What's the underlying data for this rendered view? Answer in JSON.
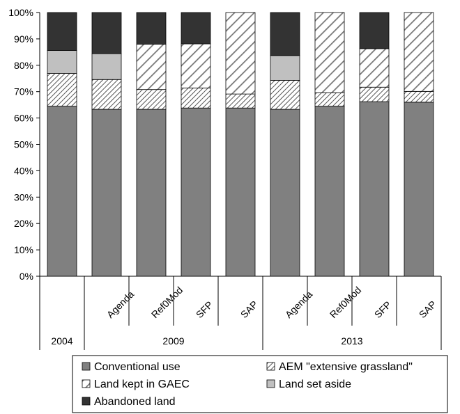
{
  "chart_data": {
    "type": "bar",
    "stacked": true,
    "normalized": true,
    "ylim": [
      0,
      100
    ],
    "yticks": [
      "0%",
      "10%",
      "20%",
      "30%",
      "40%",
      "50%",
      "60%",
      "70%",
      "80%",
      "90%",
      "100%"
    ],
    "categories": [
      "",
      "Agenda",
      "Ref0Mod",
      "SFP",
      "SAP",
      "Agenda",
      "Ref0Mod",
      "SFP",
      "SAP"
    ],
    "groups": [
      {
        "label": "2004",
        "span": 1
      },
      {
        "label": "2009",
        "span": 4
      },
      {
        "label": "2013",
        "span": 4
      }
    ],
    "series": [
      {
        "name": "Conventional use",
        "color": "#808080",
        "pattern": "solid",
        "values": [
          64.5,
          63.3,
          63.3,
          63.8,
          63.8,
          63.3,
          64.5,
          66.2,
          66.0
        ]
      },
      {
        "name": "AEM \"extensive grassland\"",
        "color": "#ffffff",
        "pattern": "diagonal-dense",
        "values": [
          12.4,
          11.3,
          7.5,
          7.6,
          5.3,
          11.0,
          5.1,
          5.5,
          4.1
        ]
      },
      {
        "name": "Land kept in GAEC",
        "color": "#ffffff",
        "pattern": "diagonal-wide",
        "values": [
          0,
          0,
          17.2,
          16.7,
          30.9,
          0,
          30.4,
          14.6,
          29.9
        ]
      },
      {
        "name": "Land set aside",
        "color": "#c0c0c0",
        "pattern": "solid",
        "values": [
          8.7,
          9.8,
          0,
          0,
          0,
          9.4,
          0,
          0,
          0
        ]
      },
      {
        "name": "Abandoned land",
        "color": "#333333",
        "pattern": "solid",
        "values": [
          14.4,
          15.6,
          12.0,
          11.9,
          0,
          16.3,
          0,
          13.7,
          0
        ]
      }
    ],
    "legend": {
      "placement": "bottom",
      "columns": 2
    },
    "grid": false
  }
}
